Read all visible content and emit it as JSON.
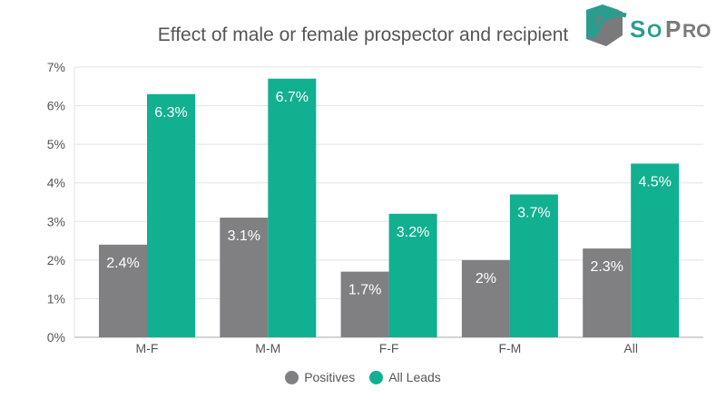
{
  "chart_data": {
    "type": "bar",
    "title": "Effect of male or female prospector and recipient",
    "categories": [
      "M-F",
      "M-M",
      "F-F",
      "F-M",
      "All"
    ],
    "series": [
      {
        "name": "Positives",
        "values": [
          2.4,
          3.1,
          1.7,
          2,
          2.3
        ],
        "labels": [
          "2.4%",
          "3.1%",
          "1.7%",
          "2%",
          "2.3%"
        ],
        "color": "#808083"
      },
      {
        "name": "All Leads",
        "values": [
          6.3,
          6.7,
          3.2,
          3.7,
          4.5
        ],
        "labels": [
          "6.3%",
          "6.7%",
          "3.2%",
          "3.7%",
          "4.5%"
        ],
        "color": "#10b090"
      }
    ],
    "yticks": [
      "0%",
      "1%",
      "2%",
      "3%",
      "4%",
      "5%",
      "6%",
      "7%"
    ],
    "ylim": [
      0,
      7
    ],
    "grid": true,
    "legend": "bottom"
  },
  "logo": {
    "text": "SoPro",
    "colors": [
      "#2a9d8f",
      "#7a7a7d"
    ]
  }
}
